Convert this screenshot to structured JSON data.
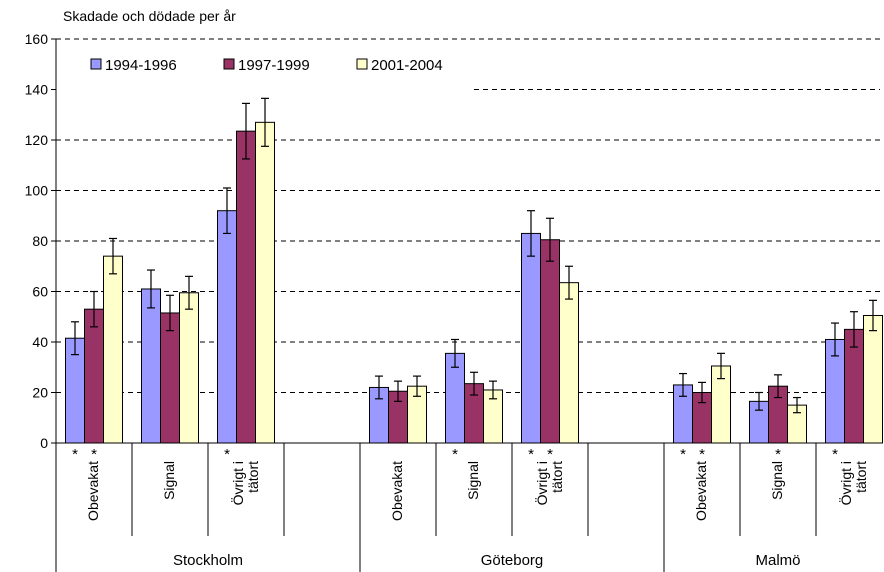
{
  "chart_data": {
    "type": "bar",
    "ylabel": "Skadade och dödade per år",
    "ylim": [
      0,
      160
    ],
    "yticks": [
      0,
      20,
      40,
      60,
      80,
      100,
      120,
      140,
      160
    ],
    "grid": "dashed-horizontal",
    "legend_position": "top-left",
    "series": [
      {
        "name": "1994-1996",
        "color": "#9999ff"
      },
      {
        "name": "1997-1999",
        "color": "#993366"
      },
      {
        "name": "2001-2004",
        "color": "#ffffcc"
      }
    ],
    "groups": [
      {
        "name": "Stockholm",
        "categories": [
          {
            "label": "Obevakat",
            "values": [
              41.5,
              53,
              74
            ],
            "errors": [
              6.5,
              7,
              7
            ],
            "stars": [
              true,
              true,
              false
            ]
          },
          {
            "label": "Signal",
            "values": [
              61,
              51.5,
              59.5
            ],
            "errors": [
              7.5,
              7,
              6.5
            ],
            "stars": [
              false,
              false,
              false
            ]
          },
          {
            "label": "Övrigt i\ntätort",
            "values": [
              92,
              123.5,
              127
            ],
            "errors": [
              9,
              11,
              9.5
            ],
            "stars": [
              true,
              false,
              false
            ]
          },
          {
            "label": "",
            "values": [],
            "errors": [],
            "stars": []
          }
        ]
      },
      {
        "name": "Göteborg",
        "categories": [
          {
            "label": "Obevakat",
            "values": [
              22,
              20.5,
              22.5
            ],
            "errors": [
              4.5,
              4,
              4
            ],
            "stars": [
              false,
              false,
              false
            ]
          },
          {
            "label": "Signal",
            "values": [
              35.5,
              23.5,
              21
            ],
            "errors": [
              5.5,
              4.5,
              3.5
            ],
            "stars": [
              true,
              false,
              false
            ]
          },
          {
            "label": "Övrigt i\ntätort",
            "values": [
              83,
              80.5,
              63.5
            ],
            "errors": [
              9,
              8.5,
              6.5
            ],
            "stars": [
              true,
              true,
              false
            ]
          },
          {
            "label": "",
            "values": [],
            "errors": [],
            "stars": []
          }
        ]
      },
      {
        "name": "Malmö",
        "categories": [
          {
            "label": "Obevakat",
            "values": [
              23,
              20,
              30.5
            ],
            "errors": [
              4.5,
              4,
              5
            ],
            "stars": [
              true,
              true,
              false
            ]
          },
          {
            "label": "Signal",
            "values": [
              16.5,
              22.5,
              15
            ],
            "errors": [
              3.5,
              4.5,
              3
            ],
            "stars": [
              false,
              true,
              false
            ]
          },
          {
            "label": "Övrigt i\ntätort",
            "values": [
              41,
              45,
              50.5
            ],
            "errors": [
              6.5,
              7,
              6
            ],
            "stars": [
              true,
              false,
              false
            ]
          }
        ]
      }
    ]
  }
}
